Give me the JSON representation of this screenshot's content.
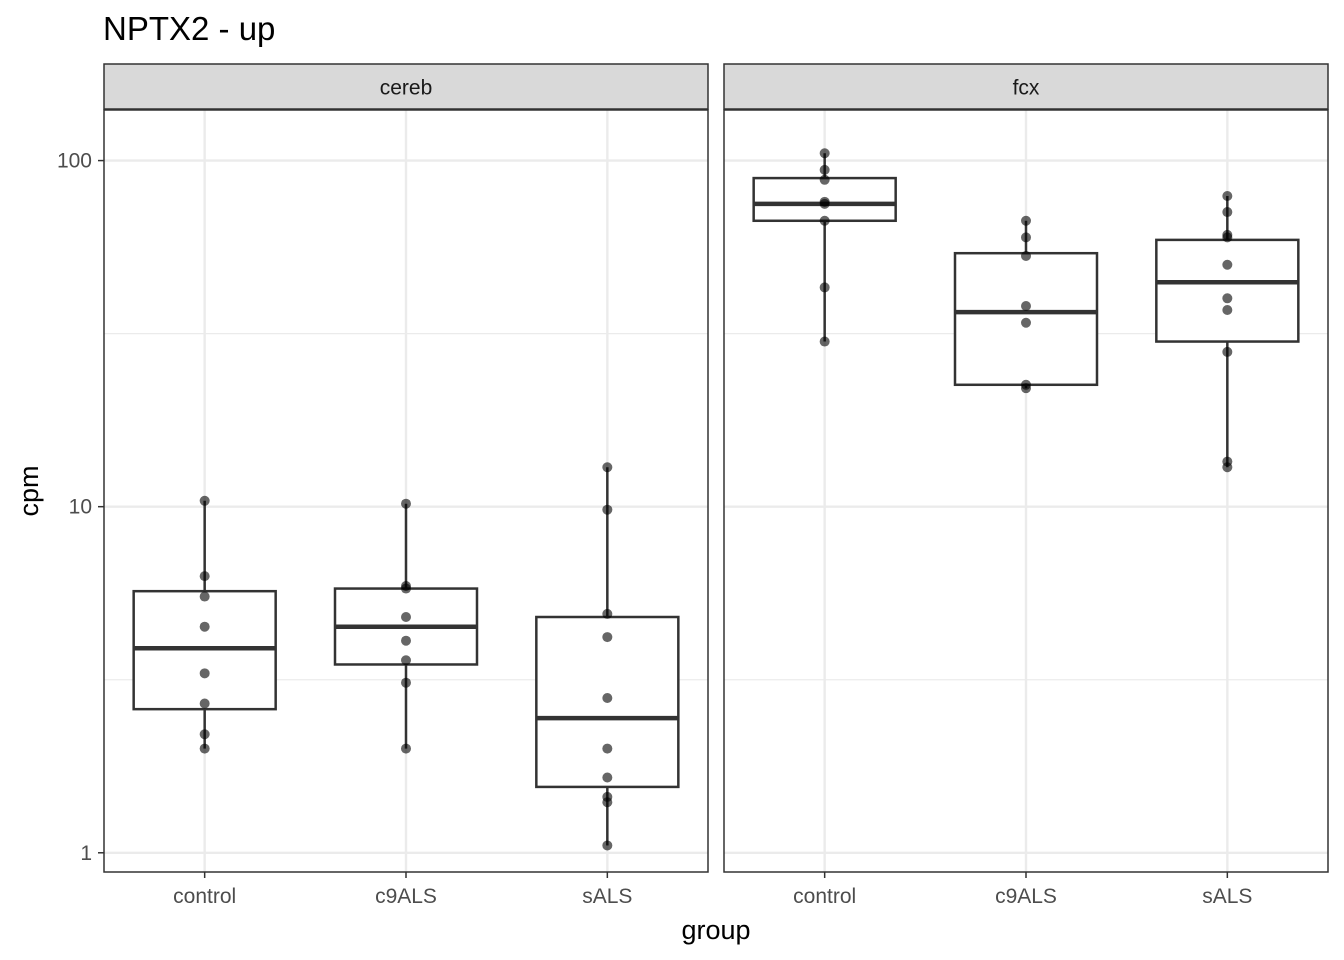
{
  "chart_data": {
    "type": "boxplot",
    "title": "NPTX2 - up",
    "xlabel": "group",
    "ylabel": "cpm",
    "y_scale": "log10",
    "ylim": [
      0.88,
      140
    ],
    "y_ticks": [
      1,
      10,
      100
    ],
    "y_tick_labels": [
      "1",
      "10",
      "100"
    ],
    "categories": [
      "control",
      "c9ALS",
      "sALS"
    ],
    "grid": true,
    "panels": [
      {
        "name": "cereb",
        "boxes": [
          {
            "group": "control",
            "min": 2.0,
            "q1": 2.6,
            "median": 3.9,
            "q3": 5.7,
            "max": 10.4
          },
          {
            "group": "c9ALS",
            "min": 2.0,
            "q1": 3.5,
            "median": 4.5,
            "q3": 5.8,
            "max": 10.2
          },
          {
            "group": "sALS",
            "min": 1.05,
            "q1": 1.55,
            "median": 2.45,
            "q3": 4.8,
            "max": 13.0
          }
        ],
        "points": [
          {
            "group": "control",
            "values": [
              10.4,
              6.3,
              5.5,
              4.5,
              3.3,
              2.7,
              2.2,
              2.0
            ]
          },
          {
            "group": "c9ALS",
            "values": [
              10.2,
              5.9,
              5.8,
              4.8,
              4.1,
              3.6,
              3.1,
              2.0
            ]
          },
          {
            "group": "sALS",
            "values": [
              13.0,
              9.8,
              4.9,
              4.2,
              2.8,
              2.0,
              1.65,
              1.45,
              1.4,
              1.05
            ]
          }
        ]
      },
      {
        "name": "fcx",
        "boxes": [
          {
            "group": "control",
            "min": 30.0,
            "q1": 67.0,
            "median": 75.0,
            "q3": 89.0,
            "max": 105.0
          },
          {
            "group": "c9ALS",
            "min": 22.0,
            "q1": 22.5,
            "median": 36.5,
            "q3": 54.0,
            "max": 67.0
          },
          {
            "group": "sALS",
            "min": 13.0,
            "q1": 30.0,
            "median": 44.5,
            "q3": 59.0,
            "max": 79.0
          }
        ],
        "points": [
          {
            "group": "control",
            "values": [
              105.0,
              94.0,
              88.0,
              76.0,
              75.0,
              67.0,
              43.0,
              30.0
            ]
          },
          {
            "group": "c9ALS",
            "values": [
              67.0,
              60.0,
              53.0,
              38.0,
              34.0,
              22.5,
              22.0
            ]
          },
          {
            "group": "sALS",
            "values": [
              79.0,
              71.0,
              61.0,
              60.0,
              50.0,
              40.0,
              37.0,
              28.0,
              13.5,
              13.0
            ]
          }
        ]
      }
    ]
  }
}
